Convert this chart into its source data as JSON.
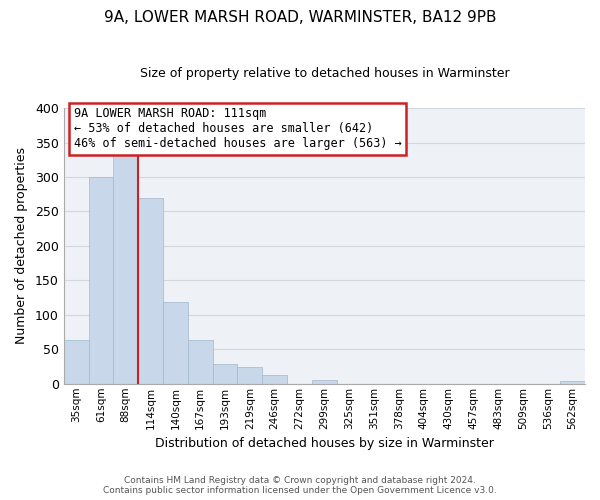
{
  "title": "9A, LOWER MARSH ROAD, WARMINSTER, BA12 9PB",
  "subtitle": "Size of property relative to detached houses in Warminster",
  "xlabel": "Distribution of detached houses by size in Warminster",
  "ylabel": "Number of detached properties",
  "footer_line1": "Contains HM Land Registry data © Crown copyright and database right 2024.",
  "footer_line2": "Contains public sector information licensed under the Open Government Licence v3.0.",
  "bar_color": "#c8d8ea",
  "bar_edge_color": "#a0b8cc",
  "bar_width": 1.0,
  "categories": [
    "35sqm",
    "61sqm",
    "88sqm",
    "114sqm",
    "140sqm",
    "167sqm",
    "193sqm",
    "219sqm",
    "246sqm",
    "272sqm",
    "299sqm",
    "325sqm",
    "351sqm",
    "378sqm",
    "404sqm",
    "430sqm",
    "457sqm",
    "483sqm",
    "509sqm",
    "536sqm",
    "562sqm"
  ],
  "values": [
    63,
    300,
    333,
    270,
    119,
    64,
    29,
    25,
    13,
    0,
    5,
    0,
    0,
    0,
    0,
    0,
    0,
    0,
    0,
    0,
    4
  ],
  "ylim": [
    0,
    400
  ],
  "yticks": [
    0,
    50,
    100,
    150,
    200,
    250,
    300,
    350,
    400
  ],
  "annotation_title": "9A LOWER MARSH ROAD: 111sqm",
  "annotation_line2": "← 53% of detached houses are smaller (642)",
  "annotation_line3": "46% of semi-detached houses are larger (563) →",
  "grid_color": "#d0d8e0",
  "background_color": "#eef2f7",
  "red_line_color": "#cc2222",
  "title_fontsize": 11,
  "subtitle_fontsize": 9
}
